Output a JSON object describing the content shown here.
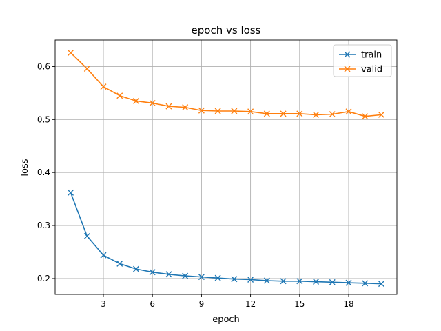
{
  "chart_data": {
    "type": "line",
    "title": "epoch vs loss",
    "xlabel": "epoch",
    "ylabel": "loss",
    "xlim": [
      0.05,
      20.95
    ],
    "ylim": [
      0.17,
      0.65
    ],
    "xticks": [
      3,
      6,
      9,
      12,
      15,
      18
    ],
    "yticks": [
      0.2,
      0.3,
      0.4,
      0.5,
      0.6
    ],
    "grid": true,
    "legend_position": "top-right",
    "x": [
      1,
      2,
      3,
      4,
      5,
      6,
      7,
      8,
      9,
      10,
      11,
      12,
      13,
      14,
      15,
      16,
      17,
      18,
      19,
      20
    ],
    "series": [
      {
        "name": "train",
        "color": "#1f77b4",
        "marker": "x",
        "values": [
          0.362,
          0.28,
          0.244,
          0.228,
          0.218,
          0.212,
          0.208,
          0.205,
          0.203,
          0.201,
          0.199,
          0.198,
          0.196,
          0.195,
          0.195,
          0.194,
          0.193,
          0.192,
          0.191,
          0.19
        ]
      },
      {
        "name": "valid",
        "color": "#ff7f0e",
        "marker": "x",
        "values": [
          0.626,
          0.596,
          0.562,
          0.545,
          0.535,
          0.531,
          0.525,
          0.523,
          0.517,
          0.516,
          0.516,
          0.515,
          0.511,
          0.511,
          0.511,
          0.509,
          0.51,
          0.515,
          0.506,
          0.509
        ]
      }
    ]
  }
}
